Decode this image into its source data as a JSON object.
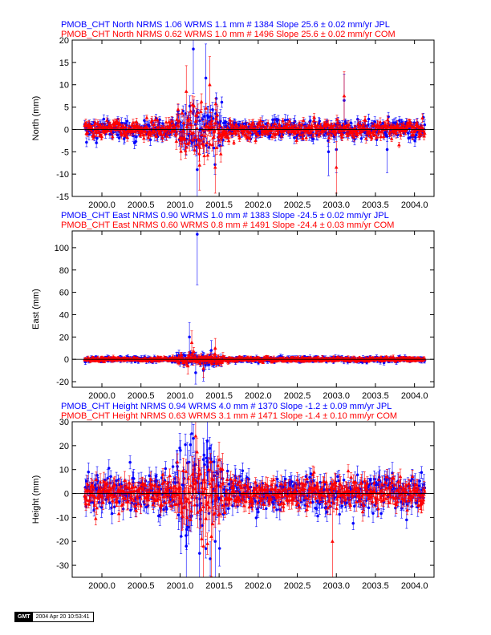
{
  "colors": {
    "jpl": "#0000ff",
    "com": "#ff0000",
    "axis": "#000000"
  },
  "footer": {
    "logo": "GMT",
    "timestamp": "2004 Apr 20 10:53:41"
  },
  "chart_data": [
    {
      "type": "scatter",
      "component": "north",
      "ylabel": "North (mm)",
      "xlim": [
        1999.62,
        2004.25
      ],
      "ylim": [
        -15,
        20
      ],
      "xticks": [
        2000.0,
        2000.5,
        2001.0,
        2001.5,
        2002.0,
        2002.5,
        2003.0,
        2003.5,
        2004.0
      ],
      "xtick_labels": [
        "2000.0",
        "2000.5",
        "2001.0",
        "2001.5",
        "2002.0",
        "2002.5",
        "2003.0",
        "2003.5",
        "2004.0"
      ],
      "yticks": [
        -15,
        -10,
        -5,
        0,
        5,
        10,
        15,
        20
      ],
      "ytick_labels": [
        "-15",
        "-10",
        "-5",
        "0",
        "5",
        "10",
        "15",
        "20"
      ],
      "series": [
        {
          "name": "JPL",
          "header": "PMOB_CHT North NRMS 1.06 WRMS  1.1 mm # 1384 Slope   25.6 ±  0.02 mm/yr JPL",
          "marker": "circle",
          "x_start": 1999.78,
          "x_end": 2004.13,
          "scatter": 1.1,
          "err": 0.9,
          "count": 1384,
          "outliers": [
            {
              "x": 2001.17,
              "y": 18.0
            },
            {
              "x": 2001.33,
              "y": 11.5
            },
            {
              "x": 2001.22,
              "y": -9.0
            },
            {
              "x": 2003.1,
              "y": 6.5
            },
            {
              "x": 2002.9,
              "y": -5.0
            },
            {
              "x": 2003.0,
              "y": -4.5
            },
            {
              "x": 2003.65,
              "y": -4.5
            }
          ]
        },
        {
          "name": "COM",
          "header": "PMOB_CHT North NRMS 0.62 WRMS  1.0 mm # 1496 Slope   25.6 ±  0.02 mm/yr COM",
          "marker": "triangle",
          "x_start": 1999.78,
          "x_end": 2004.13,
          "scatter": 1.0,
          "err": 0.7,
          "count": 1496,
          "outliers": [
            {
              "x": 2001.08,
              "y": 8.5
            },
            {
              "x": 2001.25,
              "y": -8.0
            },
            {
              "x": 2001.45,
              "y": -8.5
            },
            {
              "x": 2003.0,
              "y": -8.5
            },
            {
              "x": 2003.1,
              "y": 7.5
            },
            {
              "x": 2001.38,
              "y": 10.0
            }
          ]
        }
      ]
    },
    {
      "type": "scatter",
      "component": "east",
      "ylabel": "East (mm)",
      "xlim": [
        1999.62,
        2004.25
      ],
      "ylim": [
        -25,
        115
      ],
      "xticks": [
        2000.0,
        2000.5,
        2001.0,
        2001.5,
        2002.0,
        2002.5,
        2003.0,
        2003.5,
        2004.0
      ],
      "xtick_labels": [
        "2000.0",
        "2000.5",
        "2001.0",
        "2001.5",
        "2002.0",
        "2002.5",
        "2003.0",
        "2003.5",
        "2004.0"
      ],
      "yticks": [
        -20,
        0,
        20,
        40,
        60,
        80,
        100
      ],
      "ytick_labels": [
        "-20",
        "0",
        "20",
        "40",
        "60",
        "80",
        "100"
      ],
      "series": [
        {
          "name": "JPL",
          "header": "PMOB_CHT East NRMS 0.90 WRMS  1.0 mm # 1383 Slope  -24.5 ±  0.02 mm/yr JPL",
          "marker": "circle",
          "x_start": 1999.78,
          "x_end": 2004.13,
          "scatter": 1.0,
          "err": 1.5,
          "count": 1383,
          "outliers": [
            {
              "x": 2001.22,
              "y": 112.0
            },
            {
              "x": 2001.12,
              "y": 20.0
            },
            {
              "x": 2001.3,
              "y": -10.0
            },
            {
              "x": 2001.2,
              "y": -12.0
            },
            {
              "x": 2001.4,
              "y": 8.0
            }
          ]
        },
        {
          "name": "COM",
          "header": "PMOB_CHT East NRMS 0.60 WRMS  0.8 mm # 1491 Slope  -24.4 ±  0.03 mm/yr COM",
          "marker": "triangle",
          "x_start": 1999.78,
          "x_end": 2004.13,
          "scatter": 0.8,
          "err": 1.3,
          "count": 1491,
          "outliers": [
            {
              "x": 2001.15,
              "y": 15.0
            },
            {
              "x": 2001.45,
              "y": 10.0
            },
            {
              "x": 2001.3,
              "y": -8.0
            },
            {
              "x": 2001.1,
              "y": -6.0
            }
          ]
        }
      ]
    },
    {
      "type": "scatter",
      "component": "height",
      "ylabel": "Height (mm)",
      "xlim": [
        1999.62,
        2004.25
      ],
      "ylim": [
        -35,
        30
      ],
      "xticks": [
        2000.0,
        2000.5,
        2001.0,
        2001.5,
        2002.0,
        2002.5,
        2003.0,
        2003.5,
        2004.0
      ],
      "xtick_labels": [
        "2000.0",
        "2000.5",
        "2001.0",
        "2001.5",
        "2002.0",
        "2002.5",
        "2003.0",
        "2003.5",
        "2004.0"
      ],
      "yticks": [
        -30,
        -20,
        -10,
        0,
        10,
        20,
        30
      ],
      "ytick_labels": [
        "-30",
        "-20",
        "-10",
        "0",
        "10",
        "20",
        "30"
      ],
      "series": [
        {
          "name": "JPL",
          "header": "PMOB_CHT Height NRMS 0.94 WRMS  4.0 mm # 1370 Slope   -1.2 ±  0.09 mm/yr JPL",
          "marker": "circle",
          "x_start": 1999.78,
          "x_end": 2004.13,
          "scatter": 4.0,
          "err": 3.0,
          "count": 1370,
          "outliers": [
            {
              "x": 2001.15,
              "y": 25.0
            },
            {
              "x": 2001.25,
              "y": -25.0
            },
            {
              "x": 2001.45,
              "y": -20.0
            },
            {
              "x": 2001.35,
              "y": 22.0
            },
            {
              "x": 2001.08,
              "y": -22.0
            }
          ]
        },
        {
          "name": "COM",
          "header": "PMOB_CHT Height NRMS 0.63 WRMS  3.1 mm # 1471 Slope   -1.4 ±  0.10 mm/yr COM",
          "marker": "triangle",
          "x_start": 1999.78,
          "x_end": 2004.13,
          "scatter": 3.1,
          "err": 2.6,
          "count": 1471,
          "outliers": [
            {
              "x": 2001.2,
              "y": 24.0
            },
            {
              "x": 2001.3,
              "y": -22.0
            },
            {
              "x": 2002.95,
              "y": -20.0
            },
            {
              "x": 2001.4,
              "y": -18.0
            }
          ]
        }
      ]
    }
  ]
}
